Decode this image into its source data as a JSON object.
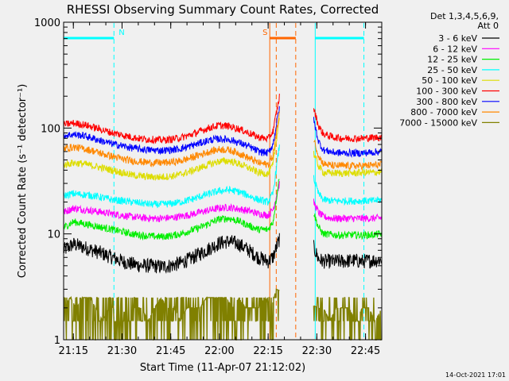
{
  "chart_data": {
    "type": "line",
    "title": "RHESSI Observing Summary Count Rates, Corrected",
    "xlabel": "Start Time (11-Apr-07 21:12:02)",
    "ylabel": "Corrected Count Rate (s⁻¹ detector⁻¹)",
    "x_unit": "minutes after 21:12:02",
    "xlim": [
      0,
      98
    ],
    "ylim": [
      1,
      1000
    ],
    "yscale": "log",
    "x_ticks": [
      {
        "label": "21:15",
        "value": 3
      },
      {
        "label": "21:30",
        "value": 18
      },
      {
        "label": "21:45",
        "value": 33
      },
      {
        "label": "22:00",
        "value": 48
      },
      {
        "label": "22:15",
        "value": 63
      },
      {
        "label": "22:30",
        "value": 78
      },
      {
        "label": "22:45",
        "value": 93
      }
    ],
    "y_ticks": [
      {
        "label": "1",
        "value": 1
      },
      {
        "label": "10",
        "value": 10
      },
      {
        "label": "100",
        "value": 100
      },
      {
        "label": "1000",
        "value": 1000
      }
    ],
    "legend_header": [
      "Det 1,3,4,5,6,9,",
      "Att 0"
    ],
    "series": [
      {
        "name": "3 - 6 keV",
        "color": "#000000",
        "x": [
          0,
          3,
          6,
          9,
          12,
          15,
          18,
          21,
          24,
          27,
          30,
          33,
          36,
          39,
          42,
          45,
          48,
          51,
          54,
          57,
          60,
          63,
          64.5,
          66.5,
          77,
          78.5,
          80,
          83,
          86,
          89,
          92,
          95,
          98
        ],
        "y": [
          7,
          8,
          7.5,
          7,
          6.5,
          6,
          5.5,
          5.2,
          5,
          5,
          4.9,
          5,
          5.3,
          5.8,
          6.5,
          7.3,
          8.2,
          8.5,
          8,
          7,
          6,
          5.5,
          6,
          9,
          7.5,
          5.8,
          5.5,
          5.5,
          5.5,
          5.6,
          5.5,
          5.6,
          5.7
        ]
      },
      {
        "name": "6 - 12 keV",
        "color": "#ff00ff",
        "x": [
          0,
          3,
          6,
          9,
          12,
          15,
          18,
          21,
          24,
          27,
          30,
          33,
          36,
          39,
          42,
          45,
          48,
          51,
          54,
          57,
          60,
          63,
          64.5,
          66.5,
          77,
          78.5,
          80,
          83,
          86,
          89,
          92,
          95,
          98
        ],
        "y": [
          16,
          17.5,
          17,
          16.5,
          16,
          15.5,
          15,
          14.5,
          14.2,
          14,
          14,
          14.2,
          14.6,
          15.2,
          16,
          16.8,
          17.5,
          17.8,
          17.2,
          16.5,
          15.5,
          15,
          17,
          30,
          20,
          16,
          14.5,
          14,
          14,
          14,
          14,
          14,
          14.2
        ]
      },
      {
        "name": "12 - 25 keV",
        "color": "#00ee00",
        "x": [
          0,
          3,
          6,
          9,
          12,
          15,
          18,
          21,
          24,
          27,
          30,
          33,
          36,
          39,
          42,
          45,
          48,
          51,
          54,
          57,
          60,
          63,
          64.5,
          66.5,
          77,
          78.5,
          80,
          83,
          86,
          89,
          92,
          95,
          98
        ],
        "y": [
          11.5,
          13,
          12.5,
          12,
          11.5,
          11,
          10.5,
          10,
          9.7,
          9.5,
          9.4,
          9.6,
          10,
          10.7,
          11.5,
          12.6,
          13.8,
          14,
          13.2,
          12,
          11,
          11,
          13,
          35,
          16,
          11.5,
          10,
          9.8,
          9.7,
          9.8,
          9.7,
          9.8,
          10
        ]
      },
      {
        "name": "25 - 50 keV",
        "color": "#00ffff",
        "x": [
          0,
          3,
          6,
          9,
          12,
          15,
          18,
          21,
          24,
          27,
          30,
          33,
          36,
          39,
          42,
          45,
          48,
          51,
          54,
          57,
          60,
          63,
          64.5,
          66.5,
          77,
          78.5,
          80,
          83,
          86,
          89,
          92,
          95,
          98
        ],
        "y": [
          23,
          24,
          23.5,
          23,
          22,
          21,
          20.5,
          20,
          19.5,
          19,
          19,
          19.3,
          20,
          21,
          22.5,
          24,
          25.5,
          26,
          25,
          23,
          21,
          20,
          24,
          70,
          34,
          24,
          21,
          20.5,
          20.5,
          20.5,
          20.5,
          20.5,
          21
        ]
      },
      {
        "name": "50 - 100 keV",
        "color": "#dddd00",
        "x": [
          0,
          3,
          6,
          9,
          12,
          15,
          18,
          21,
          24,
          27,
          30,
          33,
          36,
          39,
          42,
          45,
          48,
          51,
          54,
          57,
          60,
          63,
          64.5,
          66.5,
          77,
          78.5,
          80,
          83,
          86,
          89,
          92,
          95,
          98
        ],
        "y": [
          45,
          47,
          46,
          44,
          42,
          40,
          38,
          36,
          35,
          34.5,
          34.5,
          35,
          36.5,
          39,
          42,
          45.5,
          48.5,
          49,
          46,
          42,
          38,
          37,
          45,
          130,
          58,
          44,
          38,
          37.5,
          37.5,
          37.5,
          38,
          38,
          38.5
        ]
      },
      {
        "name": "100 - 300 keV",
        "color": "#ff0000",
        "x": [
          0,
          3,
          6,
          9,
          12,
          15,
          18,
          21,
          24,
          27,
          30,
          33,
          36,
          39,
          42,
          45,
          48,
          51,
          54,
          57,
          60,
          63,
          64.5,
          66.5,
          77,
          78.5,
          80,
          83,
          86,
          89,
          92,
          95,
          98
        ],
        "y": [
          108,
          111,
          108,
          102,
          96,
          90,
          86,
          82,
          79,
          78,
          77,
          78,
          81,
          86,
          93,
          101,
          106,
          104,
          98,
          90,
          82,
          79,
          93,
          200,
          155,
          105,
          88,
          82,
          80,
          80,
          80,
          81,
          82
        ]
      },
      {
        "name": "300 - 800 keV",
        "color": "#0000ff",
        "x": [
          0,
          3,
          6,
          9,
          12,
          15,
          18,
          21,
          24,
          27,
          30,
          33,
          36,
          39,
          42,
          45,
          48,
          51,
          54,
          57,
          60,
          63,
          64.5,
          66.5,
          77,
          78.5,
          80,
          83,
          86,
          89,
          92,
          95,
          98
        ],
        "y": [
          85,
          87,
          85,
          80,
          75,
          71,
          68,
          65,
          63,
          62,
          61.5,
          62,
          64,
          67.5,
          72,
          77,
          79,
          78,
          73,
          67,
          60,
          58,
          70,
          160,
          120,
          75,
          62,
          59,
          58,
          58,
          58,
          59,
          60
        ]
      },
      {
        "name": "800 - 7000 keV",
        "color": "#ff8800",
        "x": [
          0,
          3,
          6,
          9,
          12,
          15,
          18,
          21,
          24,
          27,
          30,
          33,
          36,
          39,
          42,
          45,
          48,
          51,
          54,
          57,
          60,
          63,
          64.5,
          66.5,
          77,
          78.5,
          80,
          83,
          86,
          89,
          92,
          95,
          98
        ],
        "y": [
          64,
          66,
          64,
          61,
          57,
          54,
          51,
          49,
          48,
          47,
          47,
          47.5,
          49,
          52,
          56,
          60,
          63,
          62,
          58,
          52,
          47,
          45,
          55,
          140,
          80,
          55,
          46,
          44,
          44,
          44,
          44,
          44.5,
          45
        ]
      },
      {
        "name": "7000 - 15000 keV",
        "color": "#808000",
        "x": [
          0,
          2,
          4,
          6,
          8,
          10,
          12,
          14,
          16,
          18,
          20,
          22,
          24,
          26,
          28,
          30,
          32,
          34,
          36,
          38,
          40,
          42,
          44,
          46,
          48,
          50,
          52,
          54,
          56,
          58,
          60,
          62,
          64,
          65.5,
          78.5,
          80,
          82,
          84,
          86,
          88,
          90,
          92,
          94,
          96,
          98
        ],
        "y": [
          2,
          2.5,
          2,
          2.5,
          2.5,
          2,
          1.5,
          2,
          2,
          2,
          1.5,
          2,
          2,
          1.5,
          2,
          2.5,
          2,
          2,
          1.5,
          2,
          2,
          2,
          2.5,
          2.5,
          2.5,
          2.5,
          2,
          2.5,
          2,
          2,
          2,
          2.5,
          2,
          3,
          2,
          2,
          1.5,
          2,
          2,
          2,
          1.5,
          2,
          2,
          1.5,
          2
        ]
      }
    ],
    "state_bars": [
      {
        "label": "N",
        "color": "#00ffff",
        "x_start": -6,
        "x_end": 15.5
      },
      {
        "label": "S",
        "color": "#ff6600",
        "x_start": 63.5,
        "x_end": 71.5
      },
      {
        "label": "",
        "color": "#00ffff",
        "x_start": 77.5,
        "x_end": 92.5
      }
    ],
    "interval_markers": [
      {
        "x": 0,
        "color": "#00ffff"
      },
      {
        "x": 15.5,
        "color": "#00ffff"
      },
      {
        "x": 63.5,
        "color": "#ff6600"
      },
      {
        "x": 65.5,
        "color": "#ff6600"
      },
      {
        "x": 71.5,
        "color": "#ff6600"
      },
      {
        "x": 77.5,
        "color": "#00ffff"
      },
      {
        "x": 92.5,
        "color": "#00ffff"
      }
    ]
  },
  "footer": {
    "datestamp": "14-Oct-2021 17:01"
  }
}
